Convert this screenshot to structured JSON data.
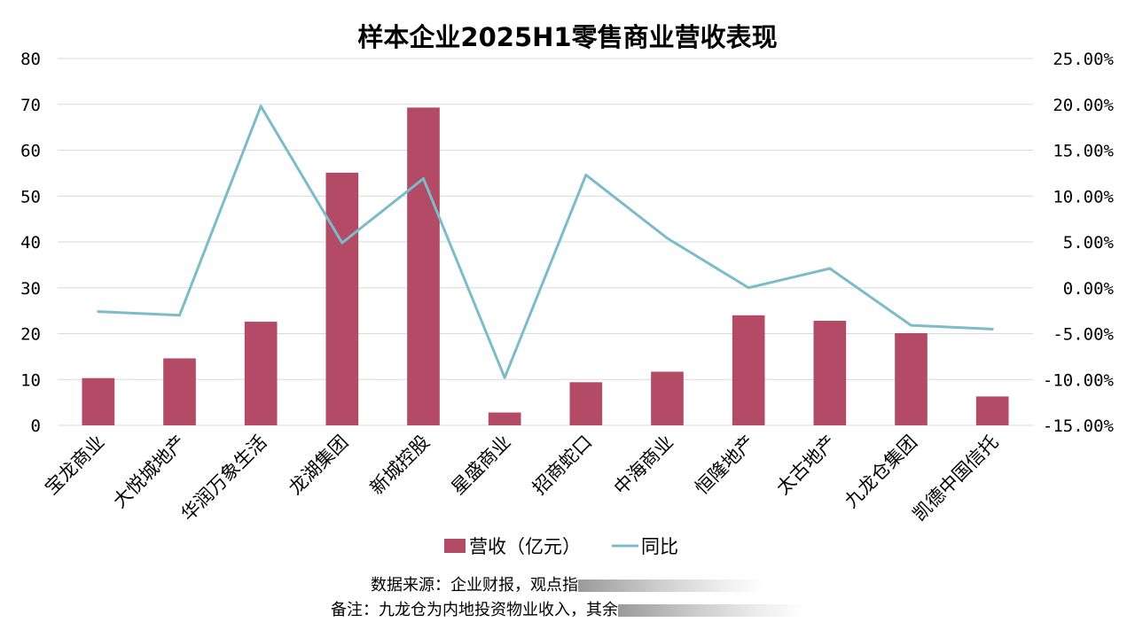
{
  "colors": {
    "bar": "#b34a66",
    "line": "#7bbcc8",
    "grid": "#d9d9d9"
  },
  "chart_data": {
    "type": "bar",
    "title": "样本企业2025H1零售商业营收表现",
    "categories": [
      "宝龙商业",
      "大悦城地产",
      "华润万象生活",
      "龙湖集团",
      "新城控股",
      "星盛商业",
      "招商蛇口",
      "中海商业",
      "恒隆地产",
      "太古地产",
      "九龙仓集团",
      "凯德中国信托"
    ],
    "series": [
      {
        "name": "营收（亿元）",
        "type": "bar",
        "axis": "left",
        "values": [
          10.3,
          14.6,
          22.6,
          55.1,
          69.3,
          2.8,
          9.4,
          11.7,
          24.0,
          22.8,
          20.1,
          6.3
        ]
      },
      {
        "name": "同比",
        "type": "line",
        "axis": "right",
        "values": [
          -2.6,
          -3.0,
          19.8,
          4.9,
          11.9,
          -9.8,
          12.3,
          5.4,
          0.0,
          2.1,
          -4.1,
          -4.5
        ]
      }
    ],
    "y_left": {
      "min": 0,
      "max": 80,
      "step": 10,
      "tick_labels": [
        "0",
        "10",
        "20",
        "30",
        "40",
        "50",
        "60",
        "70",
        "80"
      ]
    },
    "y_right": {
      "min": -15,
      "max": 25,
      "step": 5,
      "unit": "%",
      "tick_labels": [
        "-15.00%",
        "-10.00%",
        "-5.00%",
        "0.00%",
        "5.00%",
        "10.00%",
        "15.00%",
        "20.00%",
        "25.00%"
      ]
    },
    "grid": true,
    "legend_position": "bottom"
  },
  "notes": {
    "source": "数据来源：企业财报，观点指",
    "remark": "备注：九龙仓为内地投资物业收入，其余"
  }
}
